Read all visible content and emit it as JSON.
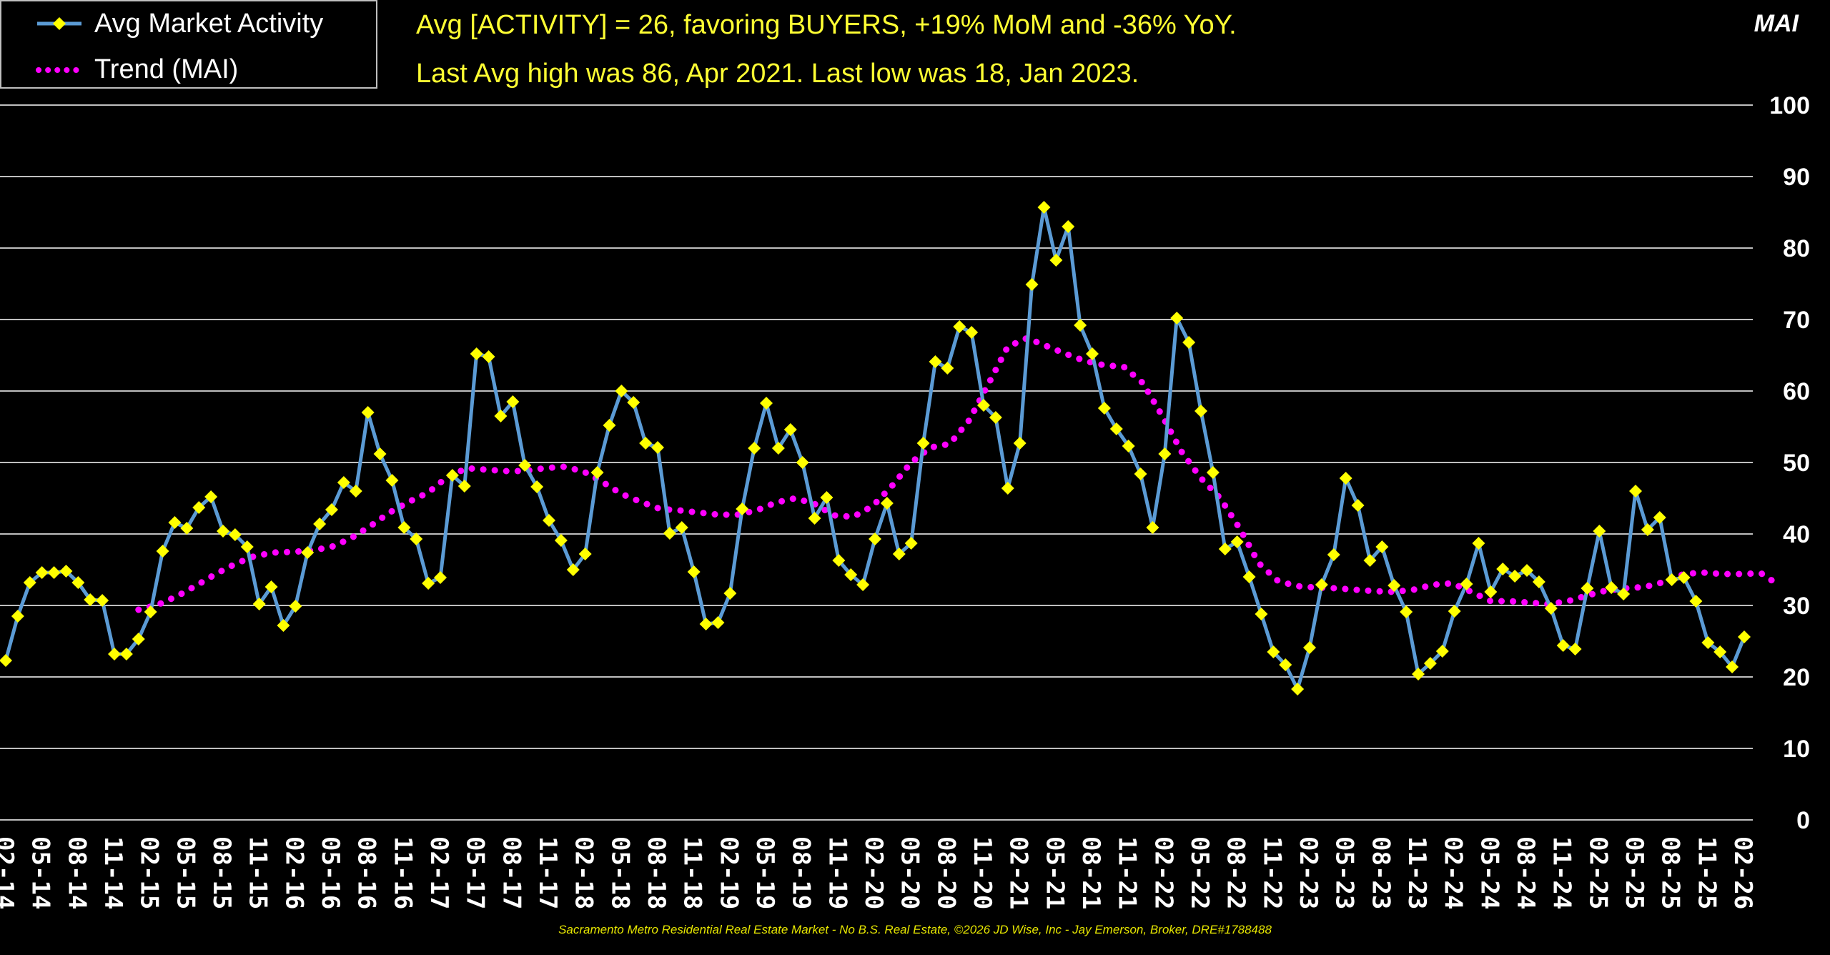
{
  "legend": {
    "series_label": "Avg Market Activity",
    "trend_label": "Trend (MAI)"
  },
  "annotations": {
    "line1": "Avg [ACTIVITY] = 26, favoring BUYERS, +19% MoM and -36% YoY.",
    "line2": "Last Avg high was 86, Apr 2021. Last low was 18, Jan 2023."
  },
  "unit_label": "MAI",
  "footer": "Sacramento Metro Residential Real Estate Market - No B.S. Real Estate, ©2026 JD Wise, Inc - Jay Emerson, Broker, DRE#1788488",
  "colors": {
    "background": "#000000",
    "series_line": "#5b9bd5",
    "series_marker": "#ffff00",
    "trend": "#ff00ff",
    "annotation_text": "#ffff33",
    "grid": "#bfbfbf"
  },
  "chart_data": {
    "type": "line",
    "ylim": [
      0,
      100
    ],
    "yticks": [
      0,
      10,
      20,
      30,
      40,
      50,
      60,
      70,
      80,
      90,
      100
    ],
    "grid": true,
    "legend_position": "top-left",
    "x_tick_labels": [
      "02-14",
      "05-14",
      "08-14",
      "11-14",
      "02-15",
      "05-15",
      "08-15",
      "11-15",
      "02-16",
      "05-16",
      "08-16",
      "11-16",
      "02-17",
      "05-17",
      "08-17",
      "11-17",
      "02-18",
      "05-18",
      "08-18",
      "11-18",
      "02-19",
      "05-19",
      "08-19",
      "11-19",
      "02-20",
      "05-20",
      "08-20",
      "11-20",
      "02-21",
      "05-21",
      "08-21",
      "11-21",
      "02-22",
      "05-22",
      "08-22",
      "11-22",
      "02-23",
      "05-23",
      "08-23",
      "11-23",
      "02-24",
      "05-24",
      "08-24",
      "11-24",
      "02-25",
      "05-25",
      "08-25",
      "11-25",
      "02-26"
    ],
    "x_start": "02-14",
    "x_end": "02-26",
    "series": [
      {
        "name": "Avg Market Activity",
        "values": [
          22.3,
          28.5,
          33.2,
          34.6,
          34.6,
          34.8,
          33.2,
          30.8,
          30.7,
          23.2,
          23.2,
          25.3,
          29.1,
          37.6,
          41.6,
          40.8,
          43.7,
          45.2,
          40.4,
          39.9,
          38.2,
          30.2,
          32.6,
          27.2,
          29.9,
          37.4,
          41.4,
          43.4,
          47.2,
          46.0,
          57.0,
          51.2,
          47.5,
          40.9,
          39.3,
          33.1,
          33.9,
          48.2,
          46.7,
          65.2,
          64.8,
          56.5,
          58.5,
          49.6,
          46.6,
          41.9,
          39.1,
          35.0,
          37.2,
          48.6,
          55.2,
          60.0,
          58.4,
          52.7,
          52.1,
          40.1,
          40.9,
          34.7,
          27.4,
          27.6,
          31.7,
          43.5,
          52.0,
          58.3,
          52.0,
          54.6,
          50.0,
          42.2,
          45.1,
          36.3,
          34.3,
          32.9,
          39.3,
          44.3,
          37.2,
          38.7,
          52.7,
          64.1,
          63.2,
          69.0,
          68.2,
          58.0,
          56.3,
          46.4,
          52.7,
          74.9,
          85.7,
          78.3,
          83.0,
          69.2,
          65.2,
          57.6,
          54.7,
          52.3,
          48.4,
          40.9,
          51.2,
          70.2,
          66.8,
          57.2,
          48.6,
          37.9,
          38.9,
          34.0,
          28.8,
          23.5,
          21.7,
          18.3,
          24.1,
          32.9,
          37.1,
          47.8,
          44.0,
          36.3,
          38.2,
          32.8,
          29.1,
          20.4,
          21.9,
          23.6,
          29.2,
          33.0,
          38.7,
          31.9,
          35.1,
          34.1,
          34.9,
          33.3,
          29.6,
          24.4,
          23.9,
          32.4,
          40.4,
          32.5,
          31.6,
          46.0,
          40.6,
          42.3,
          33.6,
          33.9,
          30.6,
          24.8,
          23.5,
          21.4,
          25.6
        ]
      },
      {
        "name": "Trend (MAI)",
        "values": [
          29.4,
          30.1,
          31.3,
          32.8,
          34.4,
          35.8,
          36.9,
          37.4,
          37.5,
          37.7,
          38.2,
          39.4,
          41.1,
          43.0,
          44.5,
          45.8,
          48.0,
          49.2,
          49.0,
          48.8,
          48.8,
          49.2,
          49.4,
          48.8,
          47.3,
          45.6,
          44.5,
          43.5,
          43.3,
          43.0,
          42.7,
          42.7,
          43.3,
          44.4,
          45.0,
          44.2,
          42.6,
          42.4,
          43.9,
          46.7,
          50.0,
          52.1,
          52.6,
          55.9,
          61.0,
          66.2,
          67.4,
          66.3,
          65.2,
          64.2,
          63.6,
          63.4,
          61.1,
          56.5,
          51.5,
          47.8,
          45.0,
          40.8,
          35.9,
          33.4,
          32.7,
          32.5,
          32.4,
          32.2,
          32.0,
          31.9,
          32.2,
          32.9,
          33.1,
          31.9,
          30.6,
          30.6,
          30.4,
          30.2,
          30.6,
          31.4,
          32.1,
          32.4,
          32.6,
          33.3,
          34.4,
          34.6,
          34.4,
          34.4,
          34.5,
          32.7
        ],
        "x_start_index": 11
      }
    ]
  }
}
